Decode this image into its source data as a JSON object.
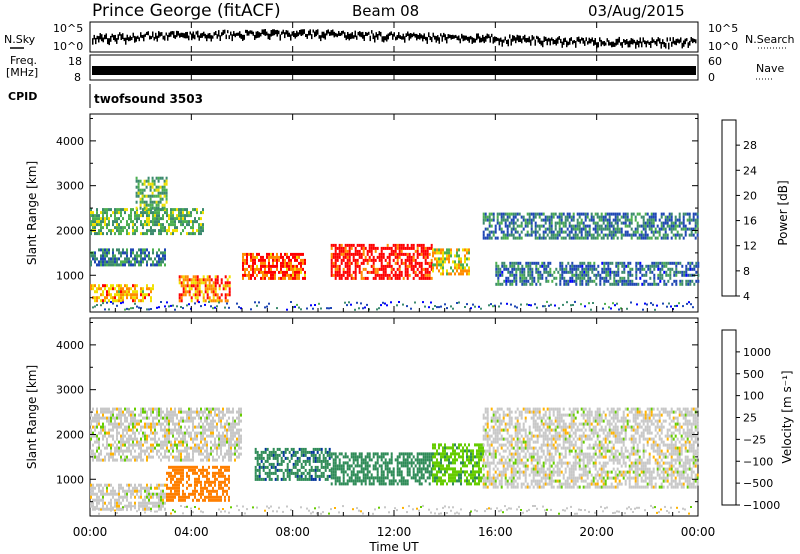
{
  "header": {
    "title": "Prince George (fitACF)",
    "beam": "Beam 08",
    "date": "03/Aug/2015",
    "cpid_label": "CPID",
    "cpid_value": "twofsound 3503"
  },
  "top_panels": {
    "nsky_label": "N.Sky",
    "nsearch_label": "N.Search",
    "freq_label": "Freq.",
    "freq_unit": "[MHz]",
    "nave_label": "Nave",
    "noise_left_ticks": [
      "10^5",
      "10^0"
    ],
    "noise_right_ticks": [
      "10^5",
      "10^0"
    ],
    "freq_ticks": [
      "18",
      "8"
    ],
    "nave_ticks": [
      "60",
      "0"
    ]
  },
  "colors": {
    "power_scale": [
      "#0000ff",
      "#1e46b4",
      "#3c8a6e",
      "#4caf50",
      "#f0e000",
      "#ff8c00",
      "#ff0000"
    ],
    "velocity_scale": [
      "#ff0000",
      "#ff7f00",
      "#ffb300",
      "#c8c8c8",
      "#c8c8c8",
      "#66cc00",
      "#2e8b57",
      "#003399"
    ]
  },
  "chart_data": [
    {
      "type": "heatmap",
      "name": "power",
      "ylabel": "Slant Range [km]",
      "yticks": [
        "1000",
        "2000",
        "3000",
        "4000"
      ],
      "ylim": [
        180,
        4600
      ],
      "x_ticks": [
        "00:00",
        "04:00",
        "08:00",
        "12:00",
        "16:00",
        "20:00",
        "00:00"
      ],
      "colorbar_label": "Power [dB]",
      "colorbar_ticks": [
        "4",
        "8",
        "12",
        "16",
        "20",
        "24",
        "28"
      ],
      "colorbar_range": [
        0,
        30
      ],
      "bands": [
        {
          "t0": 0.0,
          "t1": 4.5,
          "r0": 1900,
          "r1": 2500,
          "level": 14
        },
        {
          "t0": 0.0,
          "t1": 3.0,
          "r0": 1200,
          "r1": 1600,
          "level": 10
        },
        {
          "t0": 0.0,
          "t1": 2.5,
          "r0": 450,
          "r1": 800,
          "level": 22
        },
        {
          "t0": 1.8,
          "t1": 3.0,
          "r0": 2500,
          "r1": 3200,
          "level": 14
        },
        {
          "t0": 3.5,
          "t1": 5.5,
          "r0": 400,
          "r1": 1000,
          "level": 24
        },
        {
          "t0": 6.0,
          "t1": 8.5,
          "r0": 900,
          "r1": 1500,
          "level": 26
        },
        {
          "t0": 9.5,
          "t1": 13.5,
          "r0": 900,
          "r1": 1700,
          "level": 29
        },
        {
          "t0": 13.5,
          "t1": 15.0,
          "r0": 1000,
          "r1": 1600,
          "level": 20
        },
        {
          "t0": 15.5,
          "t1": 24.0,
          "r0": 1800,
          "r1": 2400,
          "level": 10
        },
        {
          "t0": 16.0,
          "t1": 24.0,
          "r0": 800,
          "r1": 1300,
          "level": 9
        }
      ]
    },
    {
      "type": "heatmap",
      "name": "velocity",
      "ylabel": "Slant Range [km]",
      "yticks": [
        "1000",
        "2000",
        "3000",
        "4000"
      ],
      "ylim": [
        180,
        4600
      ],
      "x_ticks": [
        "00:00",
        "04:00",
        "08:00",
        "12:00",
        "16:00",
        "20:00",
        "00:00"
      ],
      "xlabel": "Time UT",
      "colorbar_label": "Velocity [m s⁻¹]",
      "colorbar_ticks": [
        "1000",
        "500",
        "100",
        "25",
        "−25",
        "−100",
        "−500",
        "−1000"
      ],
      "colorbar_range": [
        -1000,
        1000
      ],
      "bands": [
        {
          "t0": 0.0,
          "t1": 6.0,
          "r0": 1400,
          "r1": 2600,
          "level": 0
        },
        {
          "t0": 0.0,
          "t1": 3.0,
          "r0": 300,
          "r1": 900,
          "level": 0
        },
        {
          "t0": 3.0,
          "t1": 5.5,
          "r0": 500,
          "r1": 1300,
          "level": -300
        },
        {
          "t0": 6.5,
          "t1": 9.5,
          "r0": 1000,
          "r1": 1700,
          "level": 400
        },
        {
          "t0": 9.5,
          "t1": 13.5,
          "r0": 900,
          "r1": 1600,
          "level": 200
        },
        {
          "t0": 13.5,
          "t1": 15.5,
          "r0": 900,
          "r1": 1800,
          "level": 80
        },
        {
          "t0": 15.5,
          "t1": 24.0,
          "r0": 800,
          "r1": 2600,
          "level": 0
        }
      ]
    }
  ]
}
